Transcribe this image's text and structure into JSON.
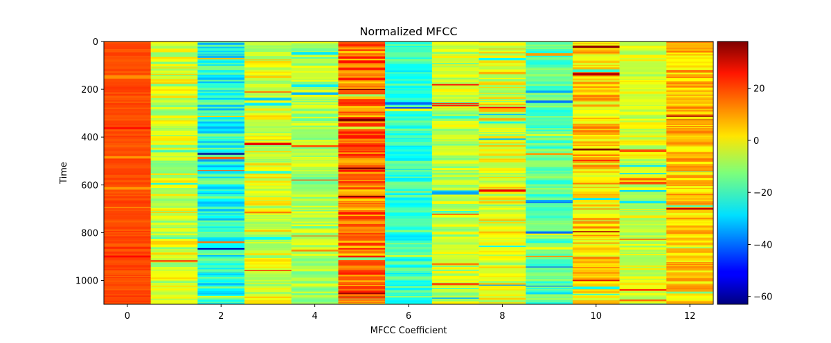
{
  "chart_data": {
    "type": "heatmap",
    "title": "Normalized MFCC",
    "xlabel": "MFCC Coefficient",
    "ylabel": "Time",
    "x_categories": [
      0,
      1,
      2,
      3,
      4,
      5,
      6,
      7,
      8,
      9,
      10,
      11,
      12
    ],
    "x_ticks": [
      "0",
      "2",
      "4",
      "6",
      "8",
      "10",
      "12"
    ],
    "y_ticks": [
      "0",
      "200",
      "400",
      "600",
      "800",
      "1000"
    ],
    "ylim": [
      1100,
      0
    ],
    "n_frames": 1100,
    "colormap": "jet",
    "color_range": [
      -63,
      38
    ],
    "colorbar_ticks": [
      "20",
      "0",
      "−20",
      "−40",
      "−60"
    ],
    "column_means": [
      18,
      -4,
      -22,
      -3,
      -8,
      14,
      -20,
      -6,
      -2,
      -16,
      4,
      -4,
      6
    ],
    "column_spread": [
      3,
      12,
      14,
      11,
      9,
      13,
      10,
      10,
      12,
      9,
      12,
      9,
      10
    ]
  }
}
